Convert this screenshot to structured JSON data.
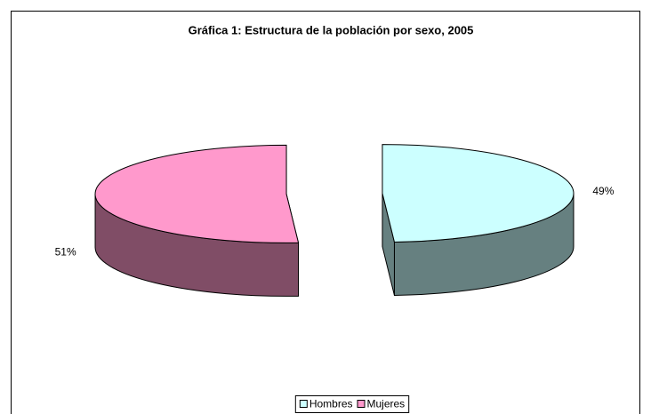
{
  "chart_data": {
    "type": "pie3d",
    "title": "Gráfica 1: Estructura de la población por sexo, 2005",
    "categories": [
      "Hombres",
      "Mujeres"
    ],
    "values": [
      49,
      51
    ],
    "value_labels": [
      "49%",
      "51%"
    ],
    "colors": [
      "#ccffff",
      "#ff99cc"
    ],
    "exploded": true,
    "legend": "bottom"
  }
}
